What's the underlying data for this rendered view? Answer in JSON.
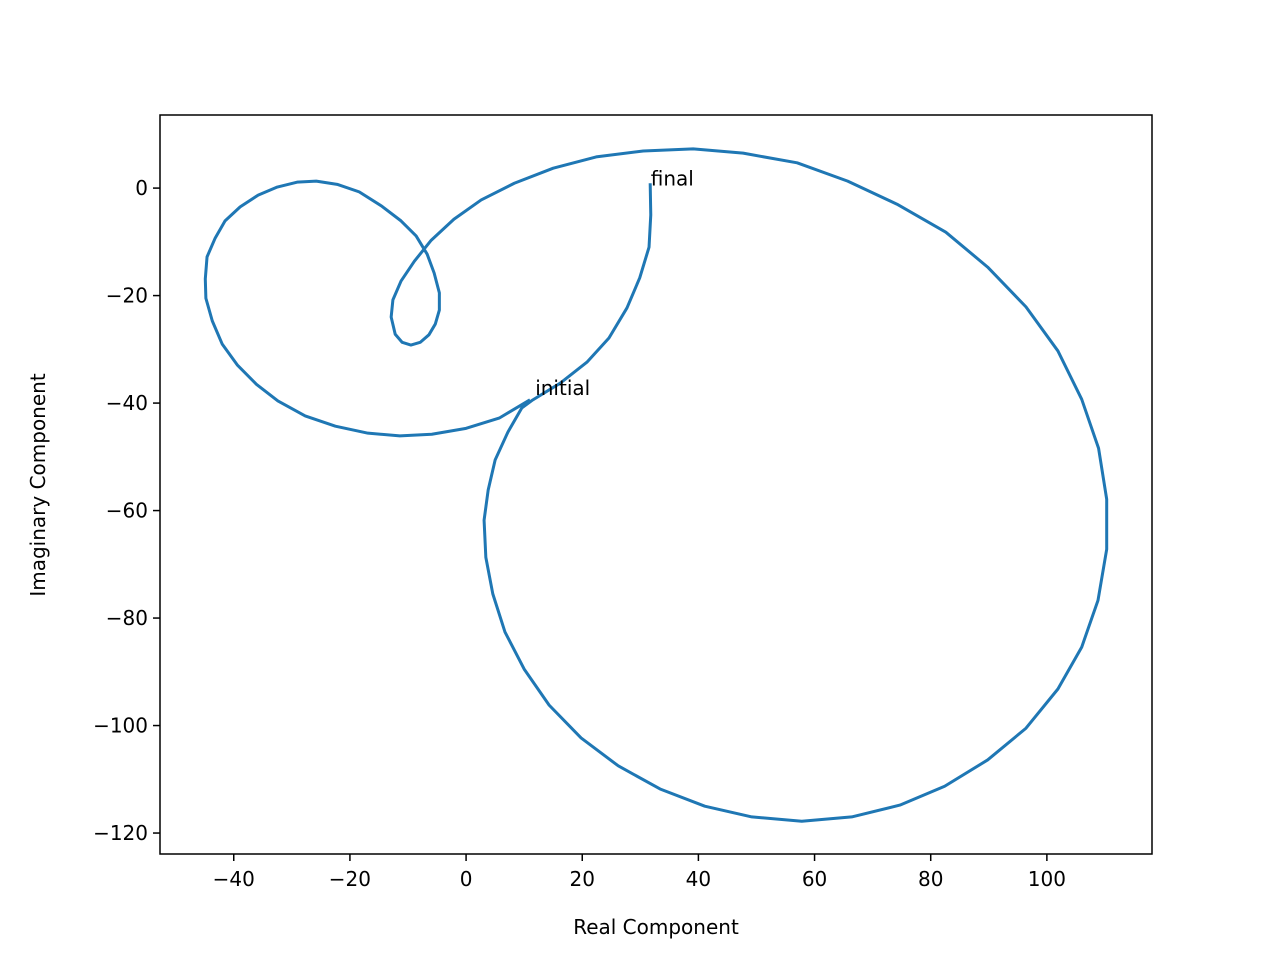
{
  "chart_data": {
    "type": "line",
    "xlabel": "Real Component",
    "ylabel": "Imaginary Component",
    "color": "#1f77b4",
    "grid": false,
    "xlim": [
      -52.7,
      118.1
    ],
    "ylim": [
      -123.9,
      13.6
    ],
    "xticks": [
      {
        "value": -40,
        "label": "−40"
      },
      {
        "value": -20,
        "label": "−20"
      },
      0,
      20,
      40,
      60,
      80,
      100
    ],
    "yticks": [
      {
        "value": -120,
        "label": "−120"
      },
      {
        "value": -100,
        "label": "−100"
      },
      {
        "value": -80,
        "label": "−80"
      },
      {
        "value": -60,
        "label": "−60"
      },
      {
        "value": -40,
        "label": "−40"
      },
      {
        "value": -20,
        "label": "−20"
      },
      0
    ],
    "x": [
      11.0,
      5.7,
      0,
      -5.9,
      -11.4,
      -16.9,
      -22.5,
      -27.7,
      -32.4,
      -36.1,
      -39.4,
      -42.0,
      -43.7,
      -44.8,
      -44.9,
      -44.6,
      -43.2,
      -41.5,
      -38.9,
      -35.8,
      -32.5,
      -29.1,
      -25.8,
      -22.2,
      -18.4,
      -14.6,
      -11.2,
      -8.6,
      -6.7,
      -5.5,
      -4.6,
      -4.6,
      -5.3,
      -6.4,
      -7.9,
      -9.5,
      -11.0,
      -12.2,
      -12.9,
      -12.6,
      -11.2,
      -8.9,
      -6.0,
      -2.1,
      2.6,
      8.3,
      15.0,
      22.4,
      30.5,
      39.1,
      47.7,
      57.0,
      65.7,
      74.2,
      82.6,
      89.8,
      96.4,
      101.9,
      106.0,
      108.9,
      110.3,
      110.3,
      108.8,
      106.0,
      101.9,
      96.4,
      89.8,
      82.4,
      74.7,
      66.4,
      57.8,
      49.2,
      41.1,
      33.4,
      26.2,
      19.8,
      14.3,
      10.0,
      6.7,
      4.6,
      3.4,
      3.1,
      3.8,
      5.0,
      7.2,
      9.6,
      11.5,
      16.2,
      20.8,
      24.6,
      27.7,
      29.9,
      31.5,
      31.8,
      31.7
    ],
    "values": [
      -39.4,
      -42.8,
      -44.7,
      -45.8,
      -46.1,
      -45.6,
      -44.3,
      -42.4,
      -39.6,
      -36.5,
      -32.9,
      -29.0,
      -24.7,
      -20.5,
      -16.9,
      -12.8,
      -9.3,
      -6.1,
      -3.5,
      -1.3,
      0.2,
      1.1,
      1.3,
      0.7,
      -0.7,
      -3.3,
      -6.1,
      -8.9,
      -12.3,
      -15.8,
      -19.5,
      -22.7,
      -25.3,
      -27.3,
      -28.7,
      -29.2,
      -28.7,
      -27.2,
      -24.0,
      -20.8,
      -17.3,
      -13.6,
      -9.7,
      -5.8,
      -2.2,
      0.9,
      3.7,
      5.8,
      6.9,
      7.3,
      6.5,
      4.7,
      1.3,
      -3.0,
      -8.2,
      -14.7,
      -22.1,
      -30.3,
      -39.3,
      -48.4,
      -57.9,
      -67.2,
      -76.7,
      -85.4,
      -93.2,
      -100.5,
      -106.4,
      -111.3,
      -114.8,
      -117.0,
      -117.8,
      -117.0,
      -115.0,
      -111.8,
      -107.5,
      -102.3,
      -96.2,
      -89.5,
      -82.6,
      -75.5,
      -68.7,
      -61.8,
      -56.2,
      -50.6,
      -45.4,
      -40.9,
      -39.4,
      -36.3,
      -32.4,
      -27.9,
      -22.3,
      -16.7,
      -11.0,
      -5.0,
      0.9
    ],
    "annotations": [
      {
        "text": "initial",
        "x": 11.9,
        "y": -38.5
      },
      {
        "text": "final",
        "x": 31.8,
        "y": 0.5
      }
    ]
  }
}
